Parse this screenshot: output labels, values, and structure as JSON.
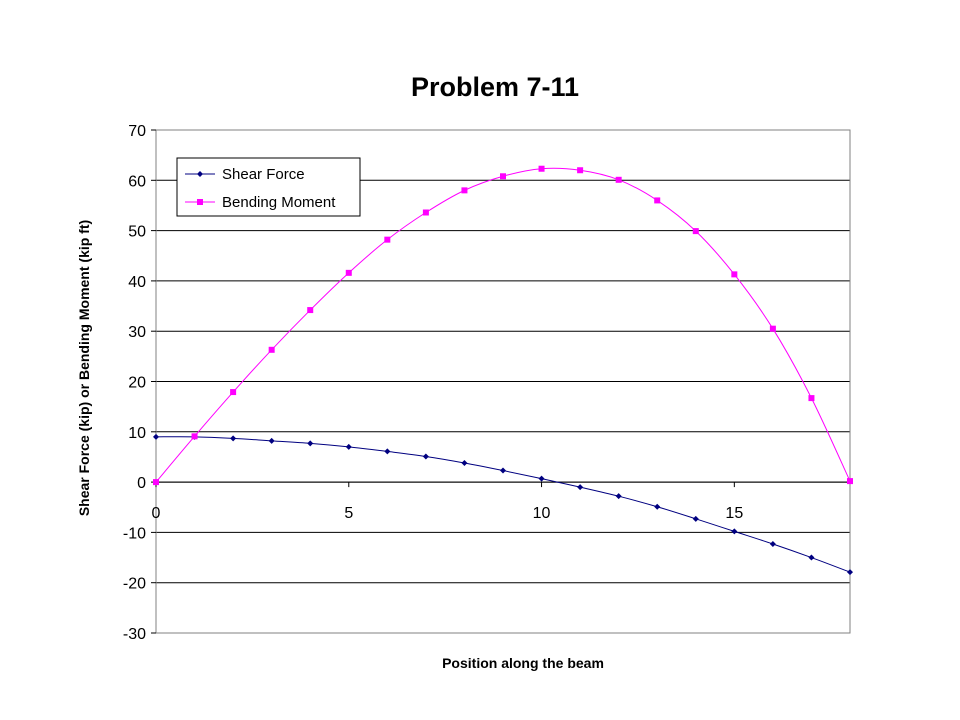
{
  "chart_data": {
    "type": "line",
    "title": "Problem 7-11",
    "xlabel": "Position along the beam",
    "ylabel": "Shear Force (kip) or Bending Moment (kip ft)",
    "xlim": [
      0,
      18
    ],
    "ylim": [
      -30,
      70
    ],
    "x_ticks": [
      0,
      5,
      10,
      15
    ],
    "y_ticks": [
      -30,
      -20,
      -10,
      0,
      10,
      20,
      30,
      40,
      50,
      60,
      70
    ],
    "grid": "horizontal",
    "legend_position": "top-left",
    "x": [
      0,
      1,
      2,
      3,
      4,
      5,
      6,
      7,
      8,
      9,
      10,
      11,
      12,
      13,
      14,
      15,
      16,
      17,
      18
    ],
    "series": [
      {
        "name": "Shear Force",
        "color": "#000080",
        "marker": "diamond",
        "values": [
          9.0,
          9.0,
          8.7,
          8.2,
          7.7,
          7.0,
          6.1,
          5.1,
          3.8,
          2.3,
          0.7,
          -1.0,
          -2.8,
          -4.9,
          -7.3,
          -9.8,
          -12.3,
          -15.0,
          -17.9
        ]
      },
      {
        "name": "Bending Moment",
        "color": "#ff00ff",
        "marker": "square",
        "values": [
          0,
          9.1,
          17.9,
          26.3,
          34.2,
          41.6,
          48.2,
          53.6,
          58.0,
          60.8,
          62.3,
          62.0,
          60.1,
          56.0,
          49.9,
          41.3,
          30.5,
          16.7,
          0.2
        ]
      }
    ]
  }
}
